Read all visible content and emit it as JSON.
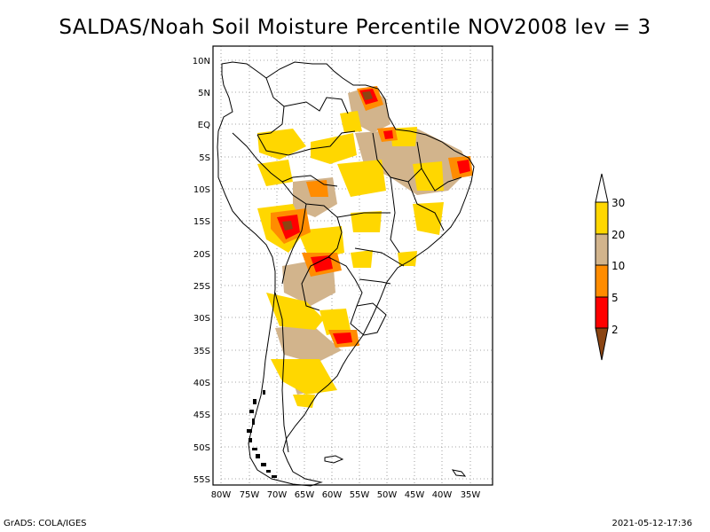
{
  "title": "SALDAS/Noah Soil Moisture Percentile NOV2008 lev = 3",
  "footer_left": "GrADS: COLA/IGES",
  "footer_right": "2021-05-12-17:36",
  "map": {
    "lon_labels": [
      "80W",
      "75W",
      "70W",
      "65W",
      "60W",
      "55W",
      "50W",
      "45W",
      "40W",
      "35W"
    ],
    "lat_labels": [
      "10N",
      "5N",
      "EQ",
      "5S",
      "10S",
      "15S",
      "20S",
      "25S",
      "30S",
      "35S",
      "40S",
      "45S",
      "50S",
      "55S"
    ]
  },
  "legend": {
    "labels": [
      "30",
      "20",
      "10",
      "5",
      "2"
    ],
    "colors": {
      "above_30": "#ffffff",
      "20_30": "#ffd700",
      "10_20": "#d2b48c",
      "5_10": "#ff8c00",
      "2_5": "#ff0000",
      "below_2": "#8b4513"
    }
  }
}
